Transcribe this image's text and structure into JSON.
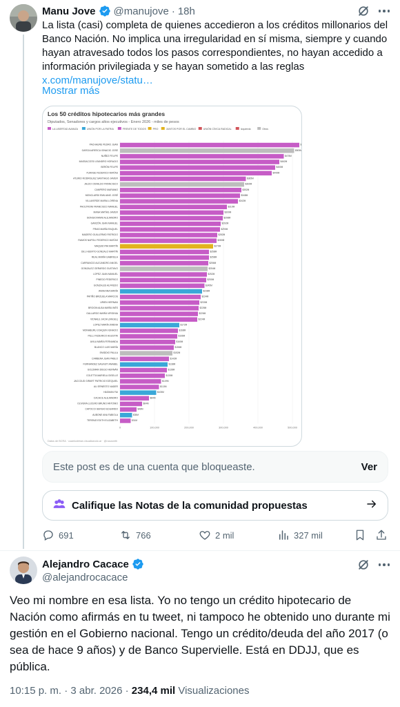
{
  "post": {
    "author": {
      "name": "Manu Jove",
      "handle": "@manujove",
      "time": "18h"
    },
    "text_parts": [
      "La lista (casi) completa de quienes accedieron a los créditos millonarios del Banco Nación. No implica una irregularidad en sí misma, siempre y cuando hayan atravesado todos los pasos correspondientes, no hayan accedido a información privilegiada y se hayan sometido a las reglas ",
      "x.com/manujove/statu…"
    ],
    "show_more": "Mostrar más",
    "blocked_notice": {
      "text": "Este post es de una cuenta que bloqueaste.",
      "action": "Ver"
    },
    "community_notes": {
      "label": "Califique las Notas de la comunidad propuestas"
    },
    "actions": {
      "replies": "691",
      "reposts": "766",
      "likes": "2 mil",
      "views": "327 mil"
    }
  },
  "reply": {
    "author": {
      "name": "Alejandro Cacace",
      "handle": "@alejandrocacace"
    },
    "text": "Veo mi nombre en esa lista. Yo no tengo un crédito hipotecario de Nación como afirmás en tu tweet, ni tampoco he obtenido uno durante mi gestión en el Gobierno nacional. Tengo un crédito/deuda del año 2017 (o sea de hace 9 años) y de Banco Supervielle. Está en DDJJ, que es pública.",
    "timestamp": "10:15 p. m. · 3 abr. 2026",
    "views_count": "234,4 mil",
    "views_label": "Visualizaciones"
  },
  "colors": {
    "accent": "#1d9bf0",
    "text": "#0f1419",
    "muted": "#536471",
    "border": "#cfd9de",
    "verified": "#1d9bf0",
    "community_notes_icon": "#8b5cf6"
  },
  "icons": {
    "verified": "verified-badge-icon",
    "grok": "grok-icon",
    "more": "more-icon",
    "reply": "reply-icon",
    "repost": "repost-icon",
    "like": "heart-icon",
    "views": "views-icon",
    "bookmark": "bookmark-icon",
    "share": "share-icon",
    "arrow": "arrow-right-icon",
    "notes": "community-notes-icon"
  },
  "chart_data": {
    "type": "bar",
    "orientation": "horizontal",
    "title": "Los 50 créditos hipotecarios más grandes",
    "subtitle": "Diputados, Senadores y cargos altos ejecutivos - Enero 2026 - miles de pesos",
    "source": "Datos de BCRA · cuantodeban.visualizando.ar · @rusosnith",
    "legend": [
      {
        "name": "LA LIBERTAD AVANZA",
        "color": "#c65cc6"
      },
      {
        "name": "UNIÓN POR LA PATRIA",
        "color": "#3aa7d8"
      },
      {
        "name": "FRENTE DE TODOS",
        "color": "#c65cc6"
      },
      {
        "name": "PRO",
        "color": "#e2b31e"
      },
      {
        "name": "JUNTOS POR EL CAMBIO",
        "color": "#e2b31e"
      },
      {
        "name": "UNIÓN CÍVICA RADICAL",
        "color": "#d2555a"
      },
      {
        "name": "Izquierda",
        "color": "#d2555a"
      },
      {
        "name": "Otros",
        "color": "#bdbdbd"
      }
    ],
    "x_ticks": [
      "0",
      "100,000",
      "200,000",
      "300,000",
      "400,000",
      "500,000"
    ],
    "xlim": [
      0,
      500000
    ],
    "categories": [
      "PACHAURE PEDRO JUAN",
      "GARCIA ARESCA IGNACIO JOSE",
      "NUÑEZ FELIPE",
      "MASSACCESI LEANDRO HORACIO",
      "BERÓN FELIPE",
      "FURASE FEDERICO MATÍAS",
      "ATURIO RODRIGUEZ SANTIAGO JAVIER",
      "JALDO OSVALDO FRANCISCO",
      "CAMPERO MARIANO",
      "MONCLARDI EMILIANO JOSÉ",
      "VILLAVERDE MARIA LORENA",
      "PAOLTRONI FRANCISCO MANUEL",
      "MANA MATÍAS JAVIER",
      "BONGIOVANNI ALEJANDRO",
      "GARZÓN JUAN MANUEL",
      "FRIAS MARÍA RAQUEL",
      "MADERO GUILLERMO PATRICIO",
      "RAMOS NAPOLI FEDERICO MATÍAS",
      "MAQUIEYRA MARTÍN",
      "DEL HUERTO GONZALO MARTÍN",
      "REAL MARÍA GABRIELA",
      "CARRANCIO ALEJANDRO ANGEL",
      "GONZALEZ GERARDO GUSTAVO",
      "LOPEZ JUAN MANUEL",
      "PINEDO FEDERICO",
      "GONZALES ALFREDO",
      "IAMIA ANA MARÍA",
      "PATIÑO BRIZUELA MARCOS",
      "URIEN HERNAN",
      "BROGIN ALBA MARÍA INÉS",
      "GALLARDO MARÍA VIRGINIA",
      "VIDNALE JACHI (ANGEL)",
      "LOPEZ MARÍA JIMENA",
      "MONABURU JOAQUIN IGNACIO",
      "PELLI FEDERICO AGUSTIN",
      "AVILA MARÍA FERNANDA",
      "BLANCO LUIS MARÍA",
      "EMIDDIO PAULA",
      "CARBERA JUAN PABLO",
      "FERNANDEZ SAGASTI ANABEL",
      "GOLDMAN DIEGO HERNÁN",
      "COLETTA MARIELA GISELLE",
      "JACCOUD GIRART PATRICIO EZEQUIEL",
      "ALI ERNESTO NADER",
      "HAGMAN FAI",
      "CACACE ALEJANDRO",
      "OLIVERA LUCERO BRUNO ANTONIO",
      "CAPOCCI SERGIO EDUARDO",
      "AUBONE ANA FABIOLA",
      "TERENZI EDITH ELIZABETH"
    ],
    "values": [
      520000,
      505000,
      475000,
      462000,
      450000,
      440000,
      365000,
      360000,
      352000,
      348000,
      342000,
      310000,
      300000,
      298000,
      292000,
      290000,
      282000,
      280000,
      270000,
      258000,
      258000,
      256000,
      254000,
      252000,
      250000,
      245000,
      238000,
      234000,
      230000,
      228000,
      226000,
      224000,
      172000,
      168000,
      166000,
      160000,
      156000,
      152000,
      142000,
      138000,
      136000,
      130000,
      119000,
      113000,
      105000,
      84000,
      64000,
      48000,
      35000,
      31000
    ],
    "value_labels": [
      "$520M",
      "$505M",
      "$475M",
      "$462M",
      "$450M",
      "$440M",
      "$365M",
      "$360M",
      "$352M",
      "$348M",
      "$342M",
      "$310M",
      "$300M",
      "$298M",
      "$292M",
      "$290M",
      "$282M",
      "$280M",
      "$270M",
      "$258M",
      "$258M",
      "$256M",
      "$254M",
      "$252M",
      "$250M",
      "$245M",
      "$238M",
      "$234M",
      "$230M",
      "$228M",
      "$226M",
      "$224M",
      "$172M",
      "$168M",
      "$166M",
      "$160M",
      "$156M",
      "$152M",
      "$142M",
      "$138M",
      "$136M",
      "$130M",
      "$119M",
      "$113M",
      "$105M",
      "$84M",
      "$64M",
      "$48M",
      "$35M",
      "$31M"
    ],
    "colors": [
      "#c65cc6",
      "#bdbdbd",
      "#c65cc6",
      "#c65cc6",
      "#c65cc6",
      "#c65cc6",
      "#c65cc6",
      "#bdbdbd",
      "#c65cc6",
      "#c65cc6",
      "#c65cc6",
      "#c65cc6",
      "#c65cc6",
      "#c65cc6",
      "#c65cc6",
      "#c65cc6",
      "#c65cc6",
      "#c65cc6",
      "#e2b31e",
      "#c65cc6",
      "#c65cc6",
      "#c65cc6",
      "#bdbdbd",
      "#c65cc6",
      "#c65cc6",
      "#c65cc6",
      "#3aa7d8",
      "#c65cc6",
      "#c65cc6",
      "#c65cc6",
      "#c65cc6",
      "#c65cc6",
      "#3aa7d8",
      "#c65cc6",
      "#c65cc6",
      "#c65cc6",
      "#c65cc6",
      "#bdbdbd",
      "#c65cc6",
      "#3aa7d8",
      "#c65cc6",
      "#c65cc6",
      "#c65cc6",
      "#c65cc6",
      "#3aa7d8",
      "#c65cc6",
      "#c65cc6",
      "#c65cc6",
      "#3aa7d8",
      "#c65cc6"
    ],
    "grid": true
  }
}
